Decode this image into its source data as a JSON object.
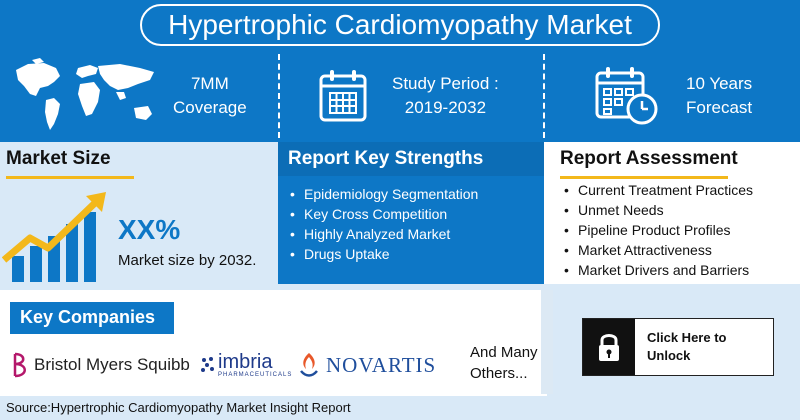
{
  "title": "Hypertrophic Cardiomyopathy Market",
  "top": {
    "coverage": {
      "line1": "7MM",
      "line2": "Coverage",
      "icon": "world-map-icon"
    },
    "study": {
      "line1": "Study Period :",
      "line2": "2019-2032",
      "icon": "calendar-icon"
    },
    "forecast": {
      "line1": "10 Years",
      "line2": "Forecast",
      "icon": "calendar-clock-icon"
    }
  },
  "market_size": {
    "heading": "Market Size",
    "value": "XX%",
    "caption": "Market size by 2032.",
    "icon": "growth-chart-icon"
  },
  "strengths": {
    "heading": "Report Key Strengths",
    "items": [
      "Epidemiology Segmentation",
      "Key Cross Competition",
      "Highly Analyzed Market",
      "Drugs Uptake"
    ]
  },
  "assessment": {
    "heading": "Report Assessment",
    "items": [
      "Current Treatment Practices",
      "Unmet Needs",
      "Pipeline Product Profiles",
      "Market Attractiveness",
      "Market Drivers and Barriers"
    ]
  },
  "companies": {
    "heading": "Key Companies",
    "logos": {
      "bms": "Bristol Myers Squibb",
      "imbria": "imbria",
      "imbria_sub": "PHARMACEUTICALS",
      "novartis": "NOVARTIS"
    },
    "others_line1": "And Many",
    "others_line2": "Others..."
  },
  "unlock": {
    "line1": "Click Here to",
    "line2": "Unlock",
    "icon": "lock-icon"
  },
  "source": "Source:Hypertrophic Cardiomyopathy Market Insight Report",
  "colors": {
    "brand_blue": "#0d77c6",
    "light_blue": "#d9e9f7",
    "accent_yellow": "#f3b81b"
  }
}
